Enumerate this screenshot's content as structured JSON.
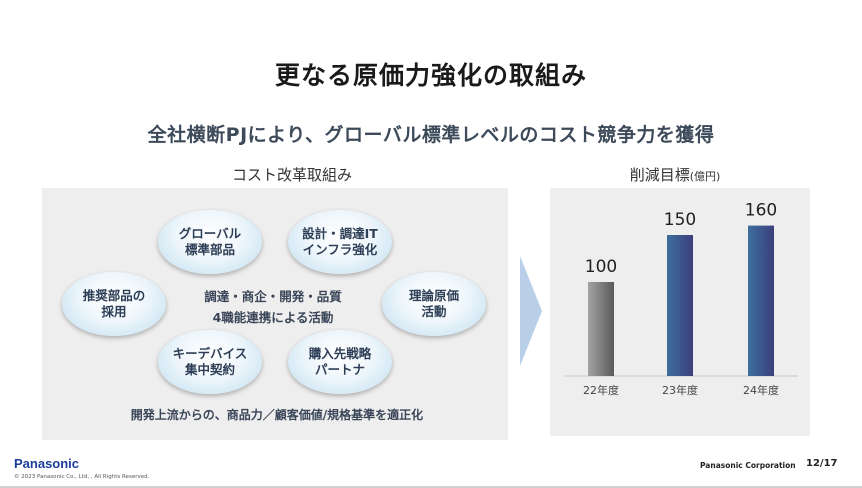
{
  "slide": {
    "title": "更なる原価力強化の取組み",
    "subtitle": "全社横断PJにより、グローバル標準レベルのコスト競争力を獲得"
  },
  "left": {
    "heading": "コスト改革取組み",
    "bubbles": [
      {
        "label": "グローバル\n標準部品"
      },
      {
        "label": "設計・調達IT\nインフラ強化"
      },
      {
        "label": "推奨部品の\n採用"
      },
      {
        "label": "理論原価\n活動"
      },
      {
        "label": "キーデバイス\n集中契約"
      },
      {
        "label": "購入先戦略\nパートナ"
      }
    ],
    "center_line1": "調達・商企・開発・品質",
    "center_line2": "4職能連携による活動",
    "bottom": "開発上流からの、商品力／顧客価値/規格基準を適正化"
  },
  "right": {
    "heading": "削減目標",
    "heading_unit": "(億円)"
  },
  "chart_data": {
    "type": "bar",
    "categories": [
      "22年度",
      "23年度",
      "24年度"
    ],
    "values": [
      100,
      150,
      160
    ],
    "title": "削減目標(億円)",
    "xlabel": "",
    "ylabel": "",
    "ylim": [
      0,
      200
    ],
    "colors": [
      "#6b6b6b",
      "#3a4f86",
      "#3a4f86"
    ]
  },
  "footer": {
    "logo": "Panasonic",
    "copyright": "© 2023 Panasonic Co., Ltd. , All Rights Reserved.",
    "company": "Panasonic Corporation",
    "page": "12/17"
  }
}
